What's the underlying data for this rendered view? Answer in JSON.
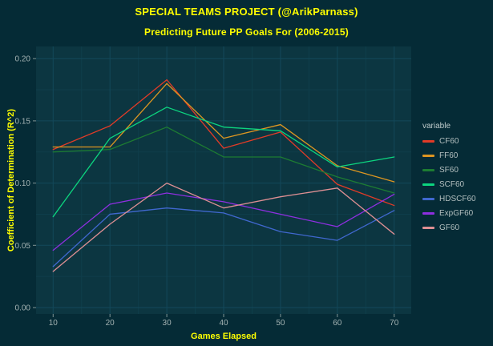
{
  "title": "SPECIAL TEAMS PROJECT (@ArikParnass)",
  "subtitle": "Predicting Future PP Goals For (2006-2015)",
  "colors": {
    "background": "#052b36",
    "panel": "#0c3641",
    "grid_major": "#13485a",
    "grid_minor": "#0f3e4b",
    "tick_mark": "#7f9494",
    "axis_text": "#a3b2b2",
    "title_text": "#ffff00",
    "legend_text": "#b3bfbf"
  },
  "chart_data": {
    "type": "line",
    "title": "SPECIAL TEAMS PROJECT (@ArikParnass)",
    "subtitle": "Predicting Future PP Goals For (2006-2015)",
    "xlabel": "Games Elapsed",
    "ylabel": "Coefficient of Determination (R^2)",
    "x": [
      10,
      20,
      30,
      40,
      50,
      60,
      70
    ],
    "x_ticks": [
      10,
      20,
      30,
      40,
      50,
      60,
      70
    ],
    "x_minor_ticks": [
      15,
      25,
      35,
      45,
      55,
      65
    ],
    "y_ticks": [
      0.0,
      0.05,
      0.1,
      0.15,
      0.2
    ],
    "y_minor_ticks": [
      0.025,
      0.075,
      0.125,
      0.175
    ],
    "xlim": [
      7,
      73
    ],
    "ylim": [
      -0.005,
      0.21
    ],
    "grid": true,
    "legend_title": "variable",
    "legend_position": "right",
    "series": [
      {
        "name": "CF60",
        "color": "#e23b27",
        "values": [
          0.127,
          0.146,
          0.183,
          0.128,
          0.141,
          0.099,
          0.082
        ]
      },
      {
        "name": "FF60",
        "color": "#dd9621",
        "values": [
          0.129,
          0.129,
          0.18,
          0.136,
          0.147,
          0.114,
          0.101
        ]
      },
      {
        "name": "SF60",
        "color": "#1d7c32",
        "values": [
          0.125,
          0.127,
          0.145,
          0.121,
          0.121,
          0.105,
          0.092
        ]
      },
      {
        "name": "SCF60",
        "color": "#0cd57f",
        "values": [
          0.073,
          0.136,
          0.161,
          0.145,
          0.142,
          0.113,
          0.121
        ]
      },
      {
        "name": "HDSCF60",
        "color": "#4068cf",
        "values": [
          0.033,
          0.075,
          0.08,
          0.076,
          0.061,
          0.054,
          0.078
        ]
      },
      {
        "name": "ExpGF60",
        "color": "#8e2fe0",
        "values": [
          0.046,
          0.083,
          0.092,
          0.085,
          0.075,
          0.065,
          0.091
        ]
      },
      {
        "name": "GF60",
        "color": "#de8f93",
        "values": [
          0.029,
          0.067,
          0.1,
          0.08,
          0.089,
          0.096,
          0.059
        ]
      }
    ]
  }
}
